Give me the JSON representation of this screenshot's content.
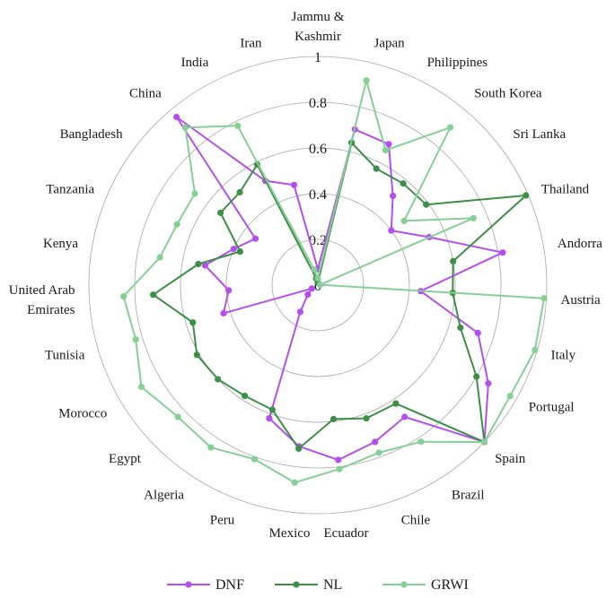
{
  "chart_data": {
    "type": "radar",
    "categories": [
      "Jammu & Kashmir",
      "Japan",
      "Philippines",
      "South Korea",
      "Sri Lanka",
      "Thailand",
      "Andorra",
      "Austria",
      "Italy",
      "Portugal",
      "Spain",
      "Brazil",
      "Chile",
      "Ecuador",
      "Mexico",
      "Peru",
      "Algeria",
      "Egypt",
      "Morocco",
      "Tunisia",
      "United Arab Emirates",
      "Kenya",
      "Tanzania",
      "Bangladesh",
      "China",
      "India",
      "Iran"
    ],
    "radial_ticks": [
      "0",
      "0.2",
      "0.4",
      "0.6",
      "0.8",
      "1"
    ],
    "rlim": [
      0,
      1
    ],
    "series": [
      {
        "name": "DNF",
        "color": "#b44fef",
        "values": [
          0.07,
          0.7,
          0.69,
          0.51,
          0.4,
          0.53,
          0.82,
          0.45,
          0.73,
          0.86,
          1.0,
          0.69,
          0.73,
          0.77,
          0.71,
          0.62,
          0.14,
          0.06,
          0.03,
          0.43,
          0.39,
          0.5,
          0.4,
          0.34,
          0.96,
          0.51,
          0.45
        ]
      },
      {
        "name": "NL",
        "color": "#3d8f47",
        "values": [
          0.01,
          0.64,
          0.57,
          0.58,
          0.59,
          0.99,
          0.6,
          0.59,
          0.65,
          0.8,
          1.0,
          0.62,
          0.62,
          0.59,
          0.72,
          0.58,
          0.58,
          0.6,
          0.61,
          0.57,
          0.72,
          0.53,
          0.37,
          0.53,
          0.53,
          0.59,
          0.03
        ]
      },
      {
        "name": "GRWI",
        "color": "#86cf95",
        "values": [
          0.03,
          0.92,
          0.66,
          0.9,
          0.47,
          0.74,
          0.01,
          0.99,
          0.99,
          0.97,
          1.0,
          0.82,
          0.78,
          0.81,
          0.87,
          0.81,
          0.85,
          0.84,
          0.89,
          0.83,
          0.85,
          0.7,
          0.67,
          0.67,
          0.9,
          0.78,
          0.07
        ]
      }
    ]
  }
}
